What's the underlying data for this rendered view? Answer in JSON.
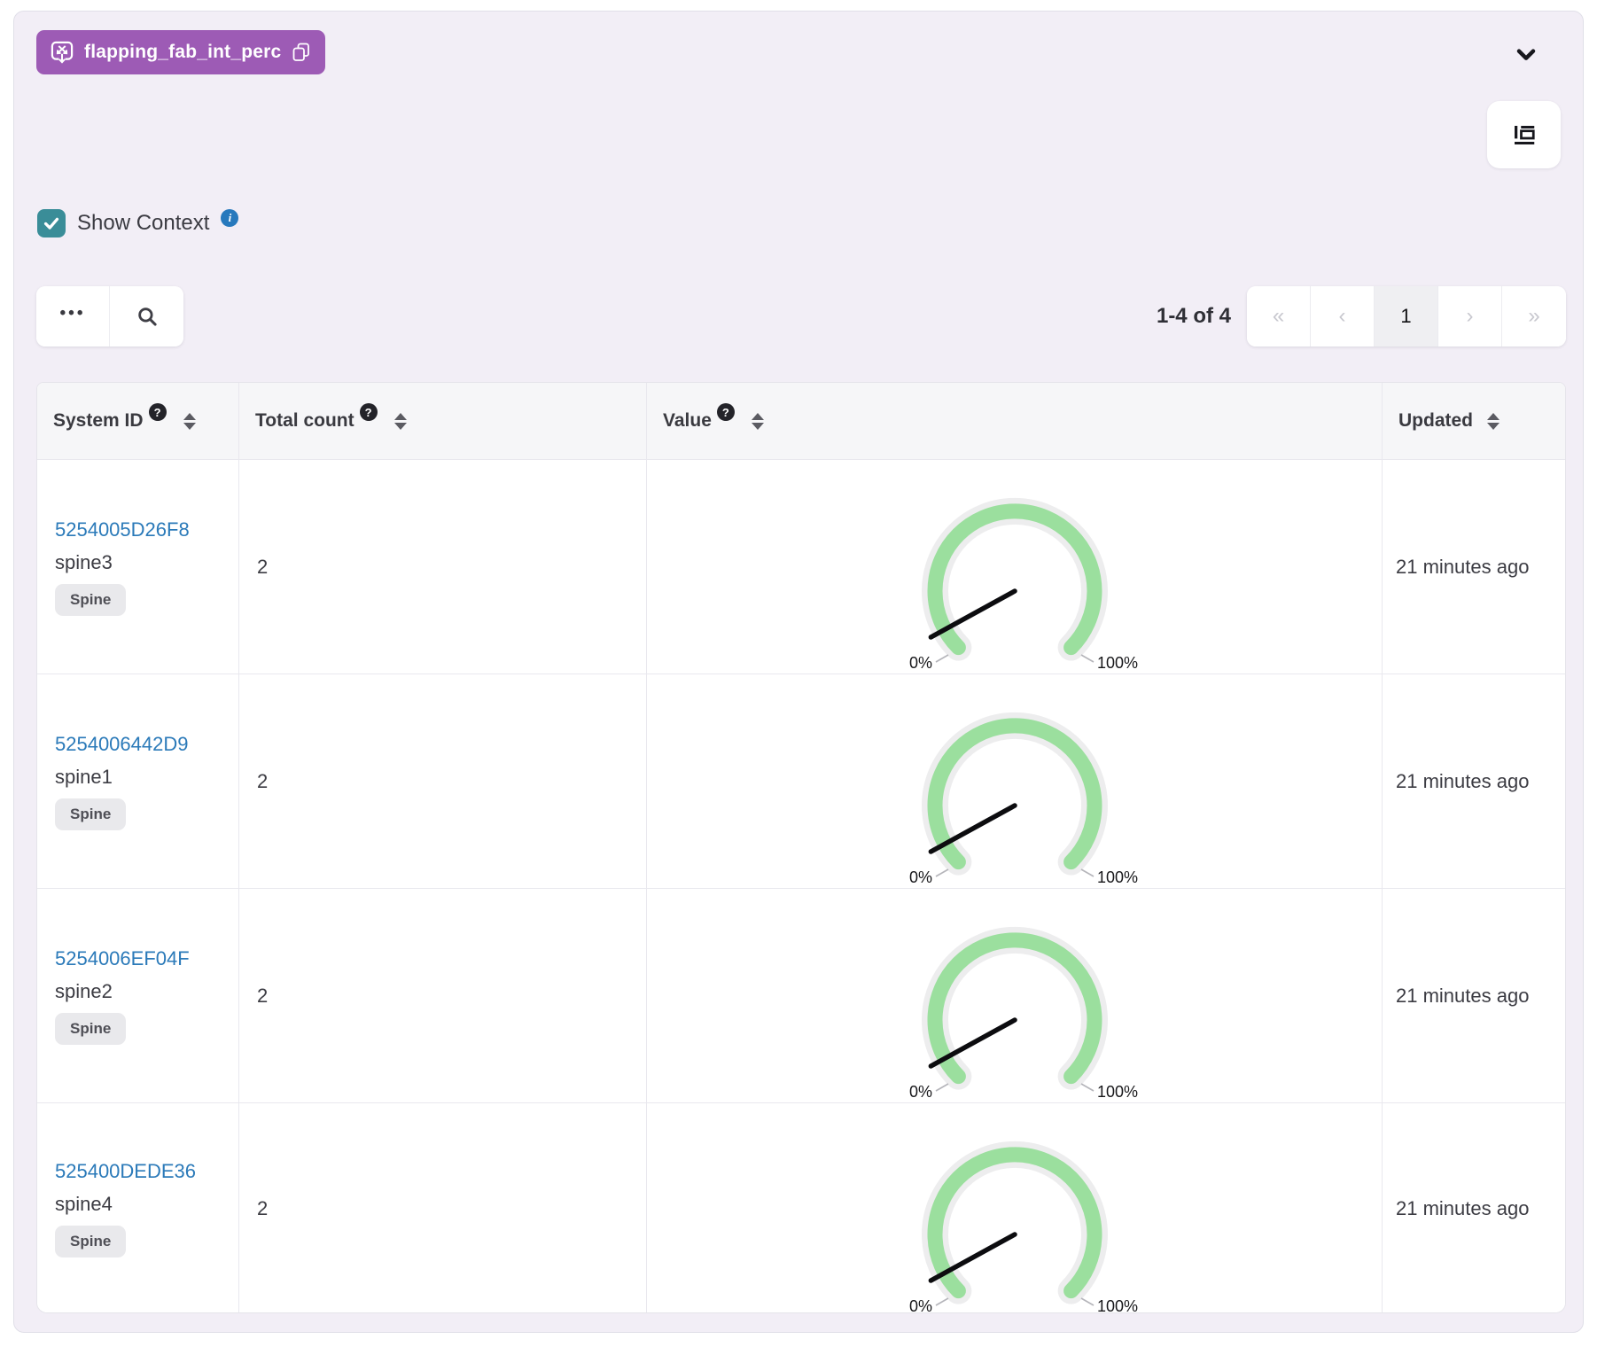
{
  "widget": {
    "title_badge": {
      "label": "flapping_fab_int_perc",
      "color": "#9d5bb5",
      "icon": "variable-icon",
      "copy_icon": "copy-icon"
    },
    "collapse_icon": "chevron-down-icon",
    "table_settings_icon": "table-layout-icon"
  },
  "controls": {
    "show_context_label": "Show Context",
    "show_context_checked": true,
    "more_label": "•••",
    "search_icon": "search-icon"
  },
  "pagination": {
    "results_range": "1-4 of 4",
    "first": "«",
    "prev": "‹",
    "page": "1",
    "next": "›",
    "last": "»",
    "current_page": "1"
  },
  "table": {
    "columns": [
      {
        "label": "System ID",
        "help": "?",
        "sortable": true
      },
      {
        "label": "Total count",
        "help": "?",
        "sortable": true
      },
      {
        "label": "Value",
        "help": "?",
        "sortable": true
      },
      {
        "label": "Updated",
        "help": "",
        "sortable": true
      }
    ],
    "rows": [
      {
        "system_id": "5254005D26F8",
        "hostname": "spine3",
        "role": "Spine",
        "total_count": "2",
        "updated": "21 minutes ago",
        "gauge": {
          "value_percent": 6,
          "min_label": "0%",
          "max_label": "100%"
        }
      },
      {
        "system_id": "5254006442D9",
        "hostname": "spine1",
        "role": "Spine",
        "total_count": "2",
        "updated": "21 minutes ago",
        "gauge": {
          "value_percent": 6,
          "min_label": "0%",
          "max_label": "100%"
        }
      },
      {
        "system_id": "5254006EF04F",
        "hostname": "spine2",
        "role": "Spine",
        "total_count": "2",
        "updated": "21 minutes ago",
        "gauge": {
          "value_percent": 6,
          "min_label": "0%",
          "max_label": "100%"
        }
      },
      {
        "system_id": "525400DEDE36",
        "hostname": "spine4",
        "role": "Spine",
        "total_count": "2",
        "updated": "21 minutes ago",
        "gauge": {
          "value_percent": 6,
          "min_label": "0%",
          "max_label": "100%"
        }
      }
    ]
  },
  "chart_data": [
    {
      "type": "gauge",
      "name": "spine3",
      "min": 0,
      "max": 100,
      "unit": "%",
      "value": 6,
      "arc_color": "#9bdf9e",
      "min_label": "0%",
      "max_label": "100%"
    },
    {
      "type": "gauge",
      "name": "spine1",
      "min": 0,
      "max": 100,
      "unit": "%",
      "value": 6,
      "arc_color": "#9bdf9e",
      "min_label": "0%",
      "max_label": "100%"
    },
    {
      "type": "gauge",
      "name": "spine2",
      "min": 0,
      "max": 100,
      "unit": "%",
      "value": 6,
      "arc_color": "#9bdf9e",
      "min_label": "0%",
      "max_label": "100%"
    },
    {
      "type": "gauge",
      "name": "spine4",
      "min": 0,
      "max": 100,
      "unit": "%",
      "value": 6,
      "arc_color": "#9bdf9e",
      "min_label": "0%",
      "max_label": "100%"
    }
  ]
}
